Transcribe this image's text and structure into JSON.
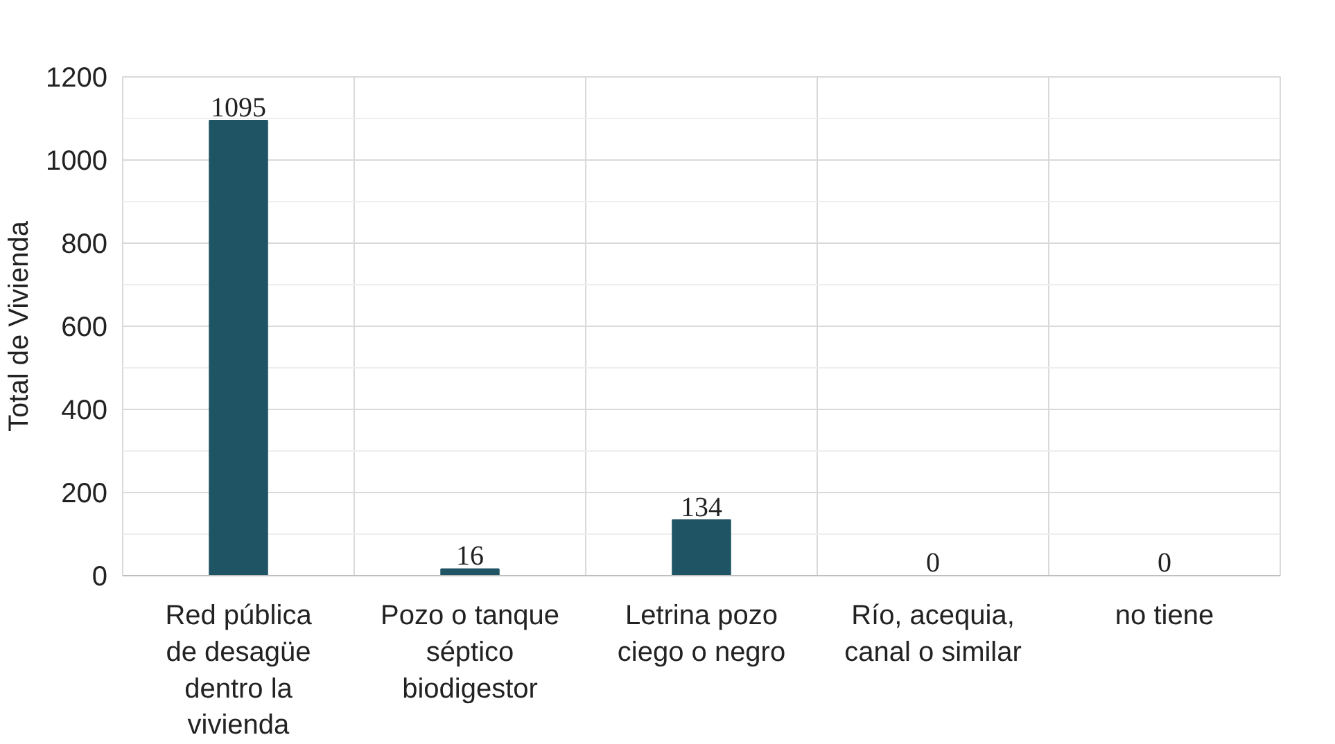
{
  "chart_data": {
    "type": "bar",
    "ylabel": "Total de Vivienda",
    "categories": [
      "Red pública\nde desagüe\ndentro la\nvivienda",
      "Pozo o tanque\nséptico\nbiodigestor",
      "Letrina pozo\nciego o negro",
      "Río, acequia,\ncanal o similar",
      "no tiene"
    ],
    "values": [
      1095,
      16,
      134,
      0,
      0
    ],
    "color": "#1f5464",
    "ylim": [
      0,
      1200
    ],
    "yticks": [
      0,
      200,
      400,
      600,
      800,
      1000,
      1200
    ],
    "grid": true,
    "data_labels": true
  }
}
